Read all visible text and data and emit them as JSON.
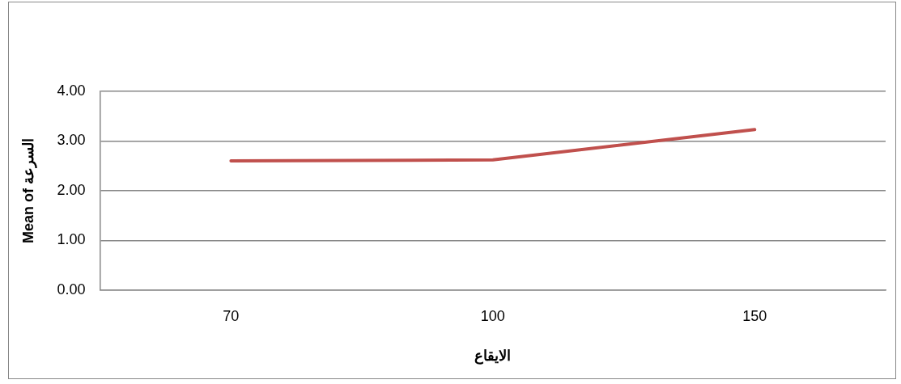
{
  "chart_data": {
    "type": "line",
    "ylabel": "Mean of السرعة",
    "xlabel": "الايقاع",
    "categories": [
      "70",
      "100",
      "150"
    ],
    "series": [
      {
        "color": "#c0504d",
        "values": [
          2.6,
          2.62,
          3.23
        ]
      }
    ],
    "ylim": [
      0,
      4
    ],
    "yticks": [
      {
        "value": 0,
        "label": "0.00"
      },
      {
        "value": 1,
        "label": "1.00"
      },
      {
        "value": 2,
        "label": "2.00"
      },
      {
        "value": 3,
        "label": "3.00"
      },
      {
        "value": 4,
        "label": "4.00"
      }
    ],
    "grid": "y",
    "legend": false,
    "marker": "none",
    "line_style": "solid"
  }
}
